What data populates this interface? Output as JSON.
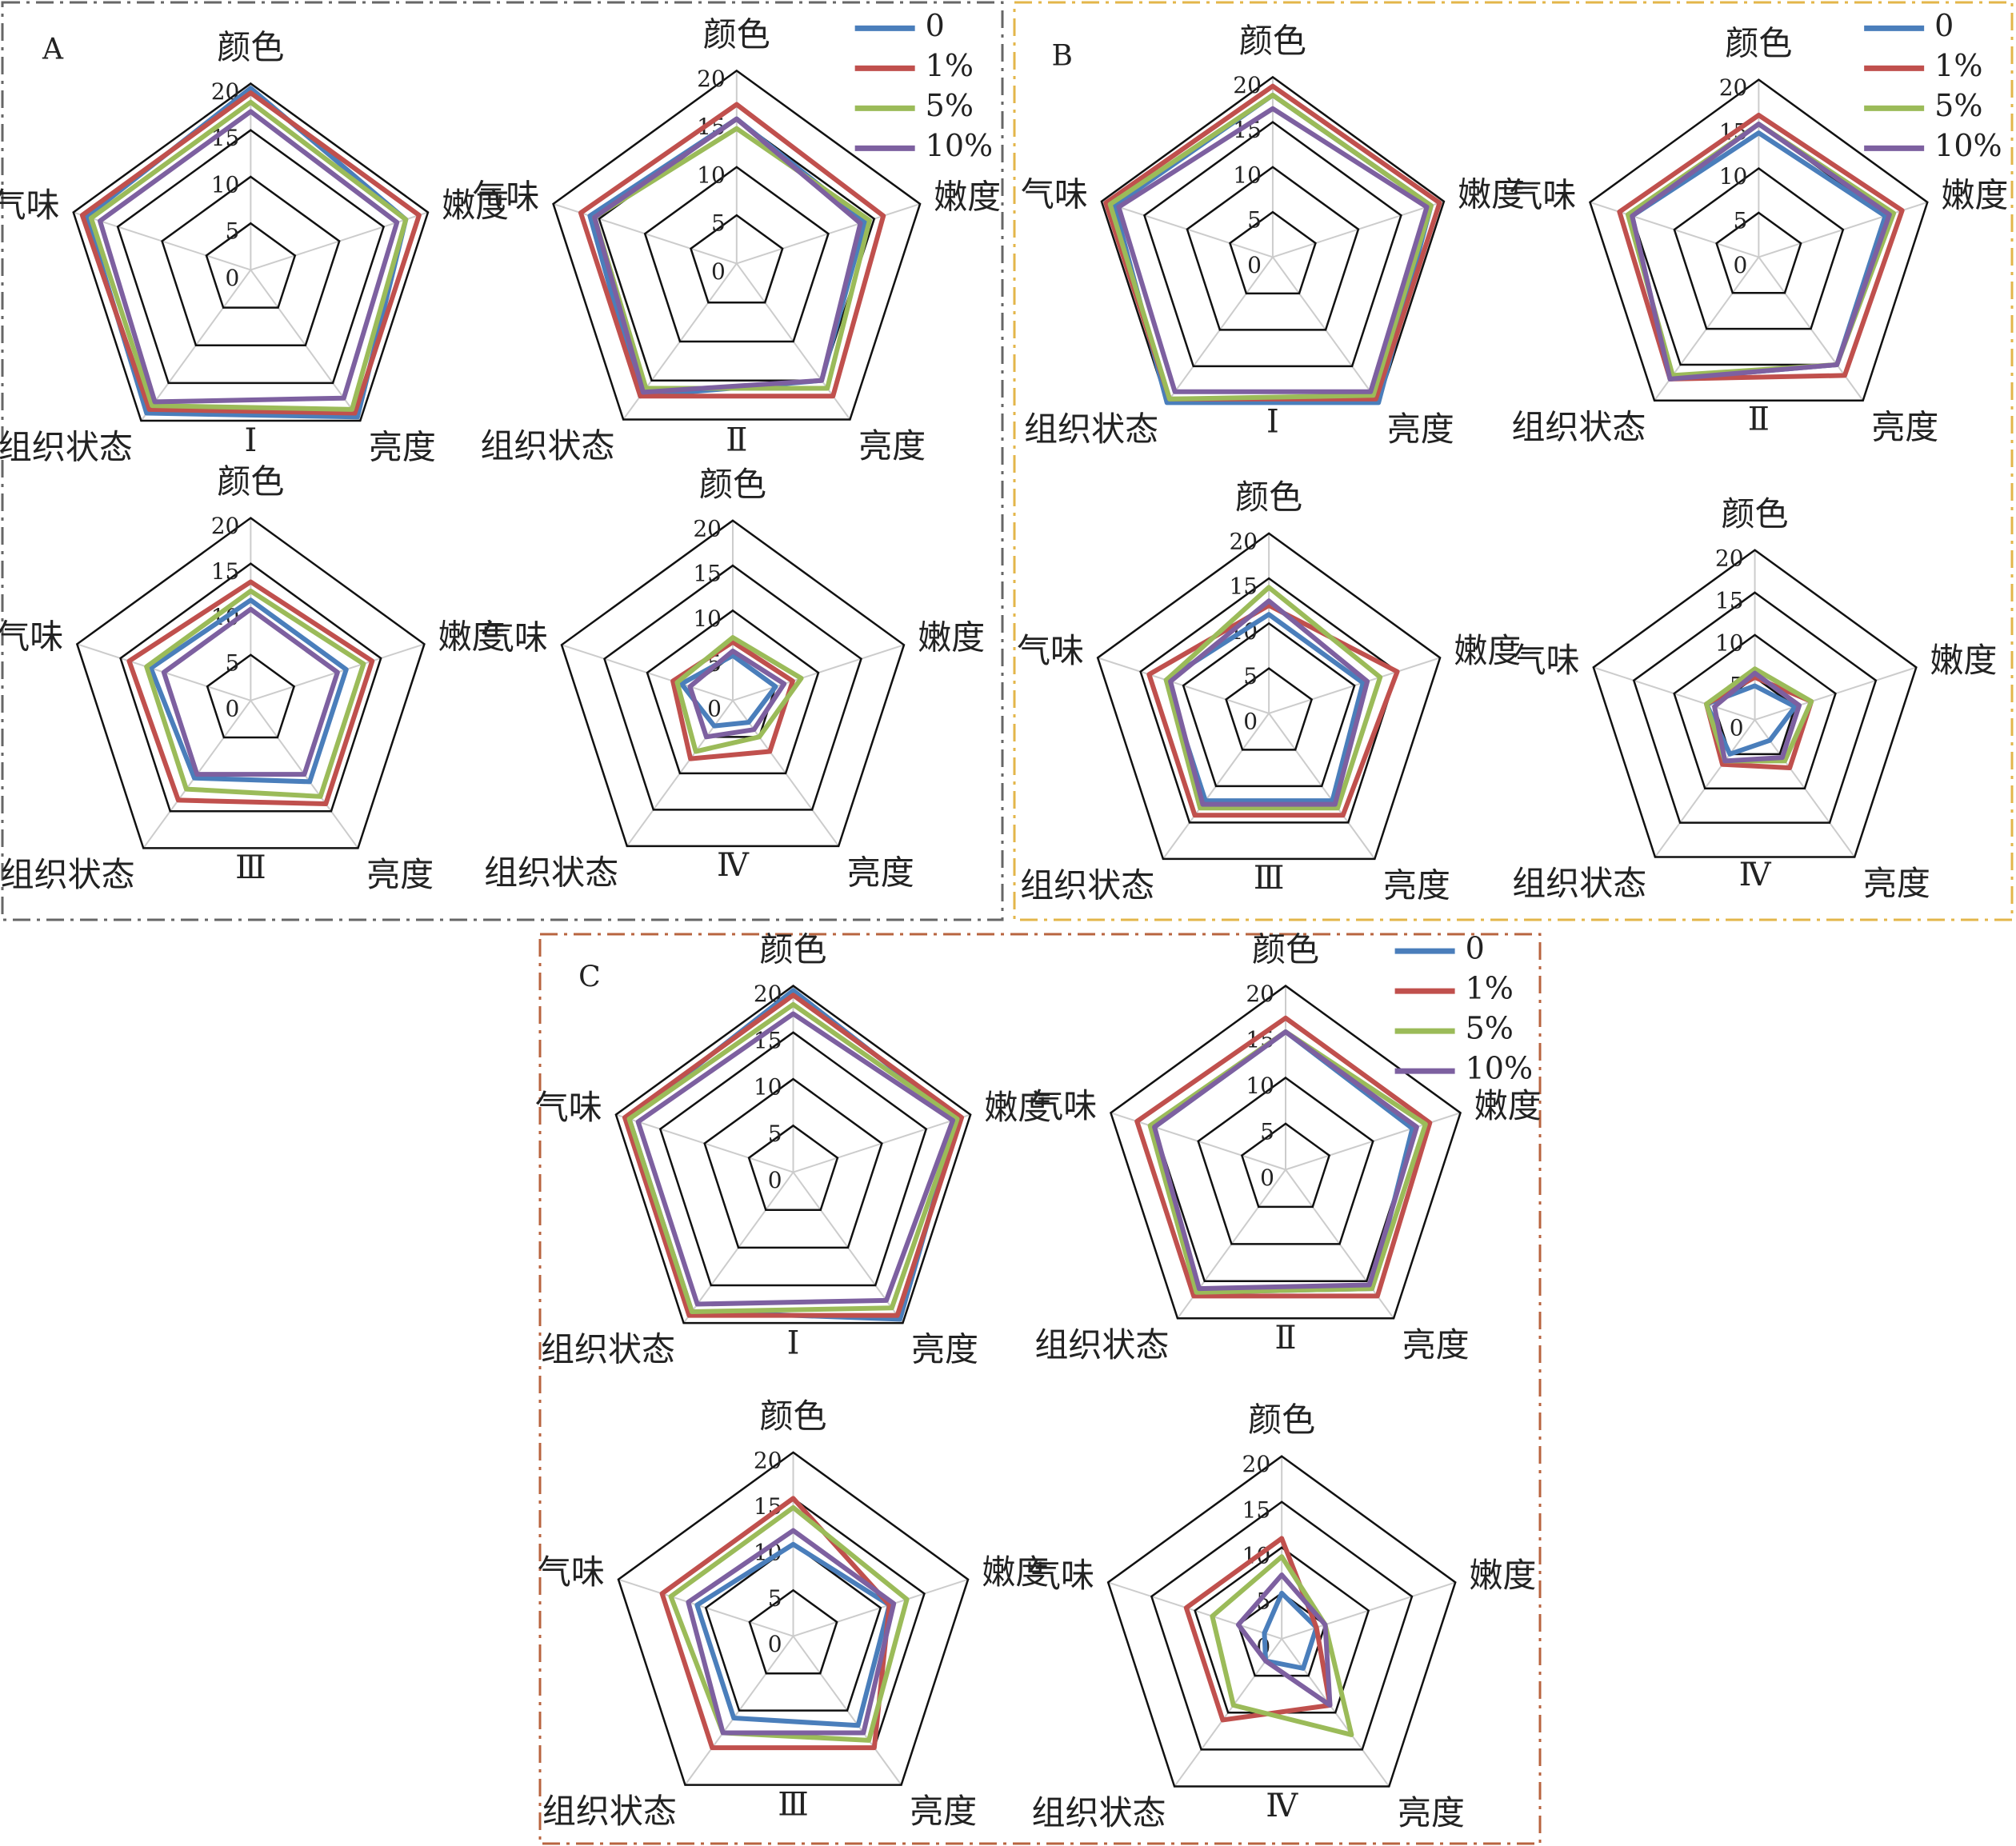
{
  "chart_data": [
    {
      "type": "radar",
      "panel": "A",
      "subtitle": "Ⅰ",
      "categories": [
        "颜色",
        "嫩度",
        "亮度",
        "组织状态",
        "气味"
      ],
      "ylim": [
        0,
        20
      ],
      "yticks": [
        0,
        5,
        10,
        15,
        20
      ],
      "series": [
        {
          "color": "#4a7ebb",
          "values": [
            19.5,
            17.5,
            19.5,
            19,
            18.5
          ]
        },
        {
          "color": "#c0504d",
          "values": [
            19,
            19,
            19,
            18.5,
            19
          ]
        },
        {
          "color": "#9bbb59",
          "values": [
            18,
            17.5,
            18.5,
            18,
            18
          ]
        },
        {
          "color": "#7d60a0",
          "values": [
            17,
            16.5,
            17,
            17.5,
            17
          ]
        }
      ]
    },
    {
      "type": "radar",
      "subtitle": "Ⅱ",
      "categories": [
        "颜色",
        "嫩度",
        "亮度",
        "组织状态",
        "气味"
      ],
      "ylim": [
        0,
        20
      ],
      "yticks": [
        0,
        5,
        10,
        15,
        20
      ],
      "legend": "upper right",
      "series": [
        {
          "name": "0",
          "color": "#4a7ebb",
          "values": [
            15,
            14,
            15,
            17,
            16
          ]
        },
        {
          "name": "1%",
          "color": "#c0504d",
          "values": [
            16.5,
            16,
            17,
            17,
            17
          ]
        },
        {
          "name": "5%",
          "color": "#9bbb59",
          "values": [
            14,
            14.5,
            16,
            16,
            15.5
          ]
        },
        {
          "name": "10%",
          "color": "#7d60a0",
          "values": [
            15,
            13.5,
            15,
            16.5,
            15.5
          ]
        }
      ]
    },
    {
      "type": "radar",
      "subtitle": "Ⅲ",
      "categories": [
        "颜色",
        "嫩度",
        "亮度",
        "组织状态",
        "气味"
      ],
      "ylim": [
        0,
        20
      ],
      "yticks": [
        0,
        5,
        10,
        15,
        20
      ],
      "series": [
        {
          "color": "#4a7ebb",
          "values": [
            11,
            11,
            11,
            10.5,
            11.5
          ]
        },
        {
          "color": "#c0504d",
          "values": [
            13,
            14,
            14,
            13.5,
            14
          ]
        },
        {
          "color": "#9bbb59",
          "values": [
            12,
            13,
            13,
            12,
            12
          ]
        },
        {
          "color": "#7d60a0",
          "values": [
            10,
            10,
            10,
            10,
            10
          ]
        }
      ]
    },
    {
      "type": "radar",
      "subtitle": "Ⅳ",
      "categories": [
        "颜色",
        "嫩度",
        "亮度",
        "组织状态",
        "气味"
      ],
      "ylim": [
        0,
        20
      ],
      "yticks": [
        0,
        5,
        10,
        15,
        20
      ],
      "series": [
        {
          "color": "#4a7ebb",
          "values": [
            5,
            5,
            3,
            3.5,
            6
          ]
        },
        {
          "color": "#c0504d",
          "values": [
            6.5,
            7,
            7,
            8,
            7
          ]
        },
        {
          "color": "#9bbb59",
          "values": [
            7,
            8,
            5,
            7,
            6.5
          ]
        },
        {
          "color": "#7d60a0",
          "values": [
            5.5,
            6,
            4,
            5,
            5
          ]
        }
      ]
    },
    {
      "type": "radar",
      "panel": "B",
      "subtitle": "Ⅰ",
      "categories": [
        "颜色",
        "嫩度",
        "亮度",
        "组织状态",
        "气味"
      ],
      "ylim": [
        0,
        20
      ],
      "yticks": [
        0,
        5,
        10,
        15,
        20
      ],
      "series": [
        {
          "color": "#4a7ebb",
          "values": [
            18,
            18.5,
            20,
            20,
            18.5
          ]
        },
        {
          "color": "#c0504d",
          "values": [
            19,
            19.5,
            19.5,
            19.5,
            19.5
          ]
        },
        {
          "color": "#9bbb59",
          "values": [
            18,
            18.5,
            19,
            19.5,
            19
          ]
        },
        {
          "color": "#7d60a0",
          "values": [
            16.5,
            18,
            18.5,
            18.5,
            18
          ]
        }
      ]
    },
    {
      "type": "radar",
      "subtitle": "Ⅱ",
      "categories": [
        "颜色",
        "嫩度",
        "亮度",
        "组织状态",
        "气味"
      ],
      "ylim": [
        0,
        20
      ],
      "yticks": [
        0,
        5,
        10,
        15,
        20
      ],
      "legend": "upper right",
      "series": [
        {
          "name": "0",
          "color": "#4a7ebb",
          "values": [
            14,
            15,
            15,
            17,
            15
          ]
        },
        {
          "name": "1%",
          "color": "#c0504d",
          "values": [
            16,
            17,
            16.5,
            17,
            16.5
          ]
        },
        {
          "name": "5%",
          "color": "#9bbb59",
          "values": [
            15,
            16,
            15,
            16.5,
            15.5
          ]
        },
        {
          "name": "10%",
          "color": "#7d60a0",
          "values": [
            15,
            15.5,
            15,
            17,
            15
          ]
        }
      ]
    },
    {
      "type": "radar",
      "subtitle": "Ⅲ",
      "categories": [
        "颜色",
        "嫩度",
        "亮度",
        "组织状态",
        "气味"
      ],
      "ylim": [
        0,
        20
      ],
      "yticks": [
        0,
        5,
        10,
        15,
        20
      ],
      "series": [
        {
          "color": "#4a7ebb",
          "values": [
            11,
            11,
            12,
            12,
            12
          ]
        },
        {
          "color": "#c0504d",
          "values": [
            12,
            15,
            14,
            14,
            14
          ]
        },
        {
          "color": "#9bbb59",
          "values": [
            14,
            13,
            13,
            13,
            12
          ]
        },
        {
          "color": "#7d60a0",
          "values": [
            12.5,
            11.5,
            12.5,
            12.5,
            11.5
          ]
        }
      ]
    },
    {
      "type": "radar",
      "subtitle": "Ⅳ",
      "categories": [
        "颜色",
        "嫩度",
        "亮度",
        "组织状态",
        "气味"
      ],
      "ylim": [
        0,
        20
      ],
      "yticks": [
        0,
        5,
        10,
        15,
        20
      ],
      "series": [
        {
          "color": "#4a7ebb",
          "values": [
            4,
            5,
            3,
            5,
            6
          ]
        },
        {
          "color": "#c0504d",
          "values": [
            5,
            7,
            7,
            6.5,
            6
          ]
        },
        {
          "color": "#9bbb59",
          "values": [
            6,
            7,
            6,
            6,
            6
          ]
        },
        {
          "color": "#7d60a0",
          "values": [
            5.5,
            5.5,
            5.5,
            6,
            5
          ]
        }
      ]
    },
    {
      "type": "radar",
      "panel": "C",
      "subtitle": "Ⅰ",
      "categories": [
        "颜色",
        "嫩度",
        "亮度",
        "组织状态",
        "气味"
      ],
      "ylim": [
        0,
        20
      ],
      "yticks": [
        0,
        5,
        10,
        15,
        20
      ],
      "series": [
        {
          "color": "#4a7ebb",
          "values": [
            19.5,
            18.5,
            19.5,
            18.5,
            18.5
          ]
        },
        {
          "color": "#c0504d",
          "values": [
            19,
            19,
            19,
            19,
            19
          ]
        },
        {
          "color": "#9bbb59",
          "values": [
            18,
            18.5,
            18,
            18.5,
            18.5
          ]
        },
        {
          "color": "#7d60a0",
          "values": [
            17,
            18,
            17,
            17.5,
            17.5
          ]
        }
      ]
    },
    {
      "type": "radar",
      "subtitle": "Ⅱ",
      "categories": [
        "颜色",
        "嫩度",
        "亮度",
        "组织状态",
        "气味"
      ],
      "ylim": [
        0,
        20
      ],
      "yticks": [
        0,
        5,
        10,
        15,
        20
      ],
      "legend": "upper right",
      "series": [
        {
          "name": "0",
          "color": "#4a7ebb",
          "values": [
            15,
            14.5,
            16,
            16.5,
            15
          ]
        },
        {
          "name": "1%",
          "color": "#c0504d",
          "values": [
            16.5,
            16.5,
            17,
            17,
            17
          ]
        },
        {
          "name": "5%",
          "color": "#9bbb59",
          "values": [
            15,
            16,
            16,
            16.5,
            15.5
          ]
        },
        {
          "name": "10%",
          "color": "#7d60a0",
          "values": [
            15,
            15,
            15.5,
            16,
            15
          ]
        }
      ]
    },
    {
      "type": "radar",
      "subtitle": "Ⅲ",
      "categories": [
        "颜色",
        "嫩度",
        "亮度",
        "组织状态",
        "气味"
      ],
      "ylim": [
        0,
        20
      ],
      "yticks": [
        0,
        5,
        10,
        15,
        20
      ],
      "series": [
        {
          "color": "#4a7ebb",
          "values": [
            10,
            11,
            12,
            11,
            11
          ]
        },
        {
          "color": "#c0504d",
          "values": [
            15,
            11,
            15,
            15,
            15
          ]
        },
        {
          "color": "#9bbb59",
          "values": [
            14,
            13,
            14,
            13,
            14
          ]
        },
        {
          "color": "#7d60a0",
          "values": [
            11.5,
            11.5,
            13,
            13,
            12
          ]
        }
      ]
    },
    {
      "type": "radar",
      "subtitle": "Ⅳ",
      "categories": [
        "颜色",
        "嫩度",
        "亮度",
        "组织状态",
        "气味"
      ],
      "ylim": [
        0,
        20
      ],
      "yticks": [
        0,
        5,
        10,
        15,
        20
      ],
      "series": [
        {
          "color": "#4a7ebb",
          "values": [
            5,
            4,
            4,
            3,
            2
          ]
        },
        {
          "color": "#c0504d",
          "values": [
            11,
            4,
            9,
            11,
            11
          ]
        },
        {
          "color": "#9bbb59",
          "values": [
            9,
            5,
            13,
            9,
            8
          ]
        },
        {
          "color": "#7d60a0",
          "values": [
            7,
            5,
            9,
            3,
            5
          ]
        }
      ]
    }
  ]
}
